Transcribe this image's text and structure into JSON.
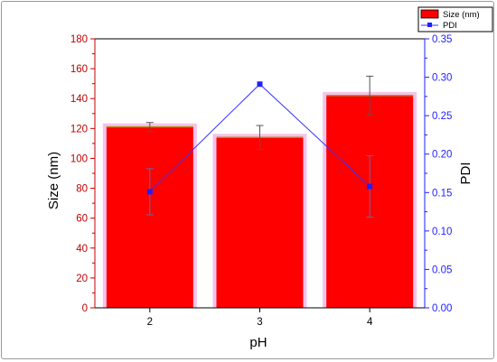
{
  "chart_data": {
    "type": "bar",
    "categories": [
      "2",
      "3",
      "4"
    ],
    "xlabel": "pH",
    "colors": {
      "bar_fill": "#ff0000",
      "bar_highlight": "#f2b3e6",
      "bar_top_edge": "#b8860b",
      "left_axis": "#c00000",
      "right_axis": "#1f1fff",
      "line": "#3333ff",
      "marker": "#1f1fff",
      "error_bar": "#555555"
    },
    "left_axis": {
      "label": "Size (nm)",
      "ylim": [
        0,
        180
      ],
      "ticks": [
        "0",
        "20",
        "40",
        "60",
        "80",
        "100",
        "120",
        "140",
        "160",
        "180"
      ]
    },
    "right_axis": {
      "label": "PDI",
      "ylim": [
        0,
        0.35
      ],
      "ticks": [
        "0.00",
        "0.05",
        "0.10",
        "0.15",
        "0.20",
        "0.25",
        "0.30",
        "0.35"
      ]
    },
    "series": [
      {
        "name": "Size (nm)",
        "type": "bar",
        "axis": "left",
        "values": [
          121,
          114,
          142
        ],
        "error": [
          3,
          8,
          13
        ]
      },
      {
        "name": "PDI",
        "type": "line",
        "axis": "right",
        "marker": "square",
        "values": [
          0.151,
          0.291,
          0.158
        ],
        "error": [
          0.03,
          0.0,
          0.04
        ]
      }
    ],
    "legend": {
      "placement": "top-right",
      "entries": [
        "Size (nm)",
        "PDI"
      ]
    },
    "grid": false
  }
}
